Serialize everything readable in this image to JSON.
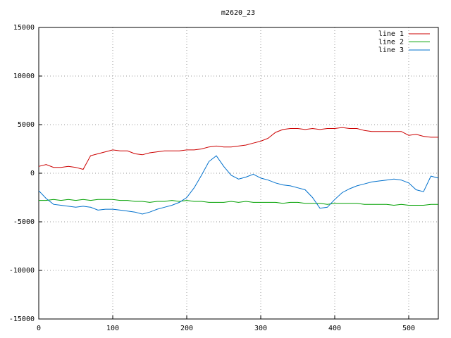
{
  "chart_data": {
    "type": "line",
    "title": "m2620_23",
    "x": [
      0,
      10,
      20,
      30,
      40,
      50,
      60,
      70,
      80,
      90,
      100,
      110,
      120,
      130,
      140,
      150,
      160,
      170,
      180,
      190,
      200,
      210,
      220,
      230,
      240,
      250,
      260,
      270,
      280,
      290,
      300,
      310,
      320,
      330,
      340,
      350,
      360,
      370,
      380,
      390,
      400,
      410,
      420,
      430,
      440,
      450,
      460,
      470,
      480,
      490,
      500,
      510,
      520,
      530,
      540
    ],
    "series": [
      {
        "name": "line 1",
        "color": "#cc0000",
        "values": [
          700,
          900,
          600,
          600,
          700,
          600,
          400,
          1800,
          2000,
          2200,
          2400,
          2300,
          2300,
          2000,
          1900,
          2100,
          2200,
          2300,
          2300,
          2300,
          2400,
          2400,
          2500,
          2700,
          2800,
          2700,
          2700,
          2800,
          2900,
          3100,
          3300,
          3600,
          4200,
          4500,
          4600,
          4600,
          4500,
          4600,
          4500,
          4600,
          4600,
          4700,
          4600,
          4600,
          4400,
          4300,
          4300,
          4300,
          4300,
          4300,
          3900,
          4000,
          3800,
          3700,
          3700
        ]
      },
      {
        "name": "line 2",
        "color": "#00a000",
        "values": [
          -2800,
          -2800,
          -2700,
          -2800,
          -2700,
          -2800,
          -2700,
          -2800,
          -2700,
          -2700,
          -2700,
          -2800,
          -2800,
          -2900,
          -2900,
          -3000,
          -2900,
          -2900,
          -2800,
          -2900,
          -2800,
          -2900,
          -2900,
          -3000,
          -3000,
          -3000,
          -2900,
          -3000,
          -2900,
          -3000,
          -3000,
          -3000,
          -3000,
          -3100,
          -3000,
          -3000,
          -3100,
          -3100,
          -3100,
          -3200,
          -3100,
          -3100,
          -3100,
          -3100,
          -3200,
          -3200,
          -3200,
          -3200,
          -3300,
          -3200,
          -3300,
          -3300,
          -3300,
          -3200,
          -3200
        ]
      },
      {
        "name": "line 3",
        "color": "#0070cc",
        "values": [
          -1800,
          -2600,
          -3200,
          -3300,
          -3400,
          -3500,
          -3400,
          -3500,
          -3800,
          -3700,
          -3700,
          -3800,
          -3900,
          -4000,
          -4200,
          -4000,
          -3700,
          -3500,
          -3300,
          -3000,
          -2500,
          -1500,
          -200,
          1200,
          1800,
          700,
          -200,
          -600,
          -400,
          -100,
          -500,
          -700,
          -1000,
          -1200,
          -1300,
          -1500,
          -1700,
          -2500,
          -3600,
          -3500,
          -2700,
          -2000,
          -1600,
          -1300,
          -1100,
          -900,
          -800,
          -700,
          -600,
          -700,
          -1000,
          -1700,
          -1900,
          -300,
          -500
        ]
      }
    ],
    "xlim": [
      0,
      540
    ],
    "ylim": [
      -15000,
      15000
    ],
    "xticks": [
      0,
      100,
      200,
      300,
      400,
      500
    ],
    "yticks": [
      -15000,
      -10000,
      -5000,
      0,
      5000,
      10000,
      15000
    ],
    "grid": true,
    "legend": "top-right"
  }
}
